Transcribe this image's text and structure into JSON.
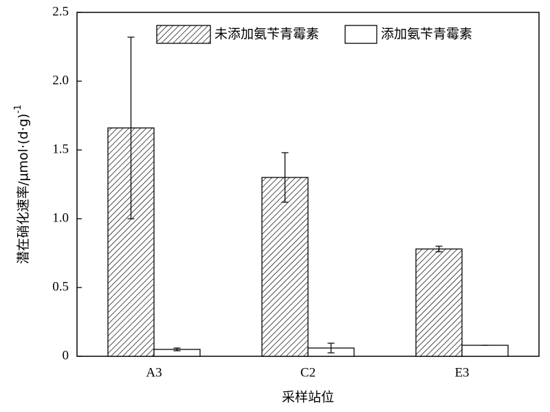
{
  "chart_data": {
    "type": "bar",
    "x_label": "采样站位",
    "y_label": "潜在硝化速率/μmol·(d·g)",
    "y_label_superscript": "-1",
    "categories": [
      "A3",
      "C2",
      "E3"
    ],
    "series": [
      {
        "name": "未添加氨苄青霉素",
        "color": "#000000",
        "pattern": "hatch",
        "values": [
          1.66,
          1.3,
          0.78
        ],
        "errors": [
          0.66,
          0.18,
          0.02
        ]
      },
      {
        "name": "添加氨苄青霉素",
        "color": "#ffffff",
        "pattern": "solid",
        "values": [
          0.05,
          0.06,
          0.08
        ],
        "errors": [
          0.01,
          0.035,
          0
        ]
      }
    ],
    "ylim": [
      0,
      2.5
    ],
    "yticks": [
      0,
      0.5,
      {
        "value": 1.0,
        "label": "1.0"
      },
      1.5,
      {
        "value": 2.0,
        "label": "2.0"
      },
      2.5
    ],
    "grid": false,
    "legend": "top"
  }
}
